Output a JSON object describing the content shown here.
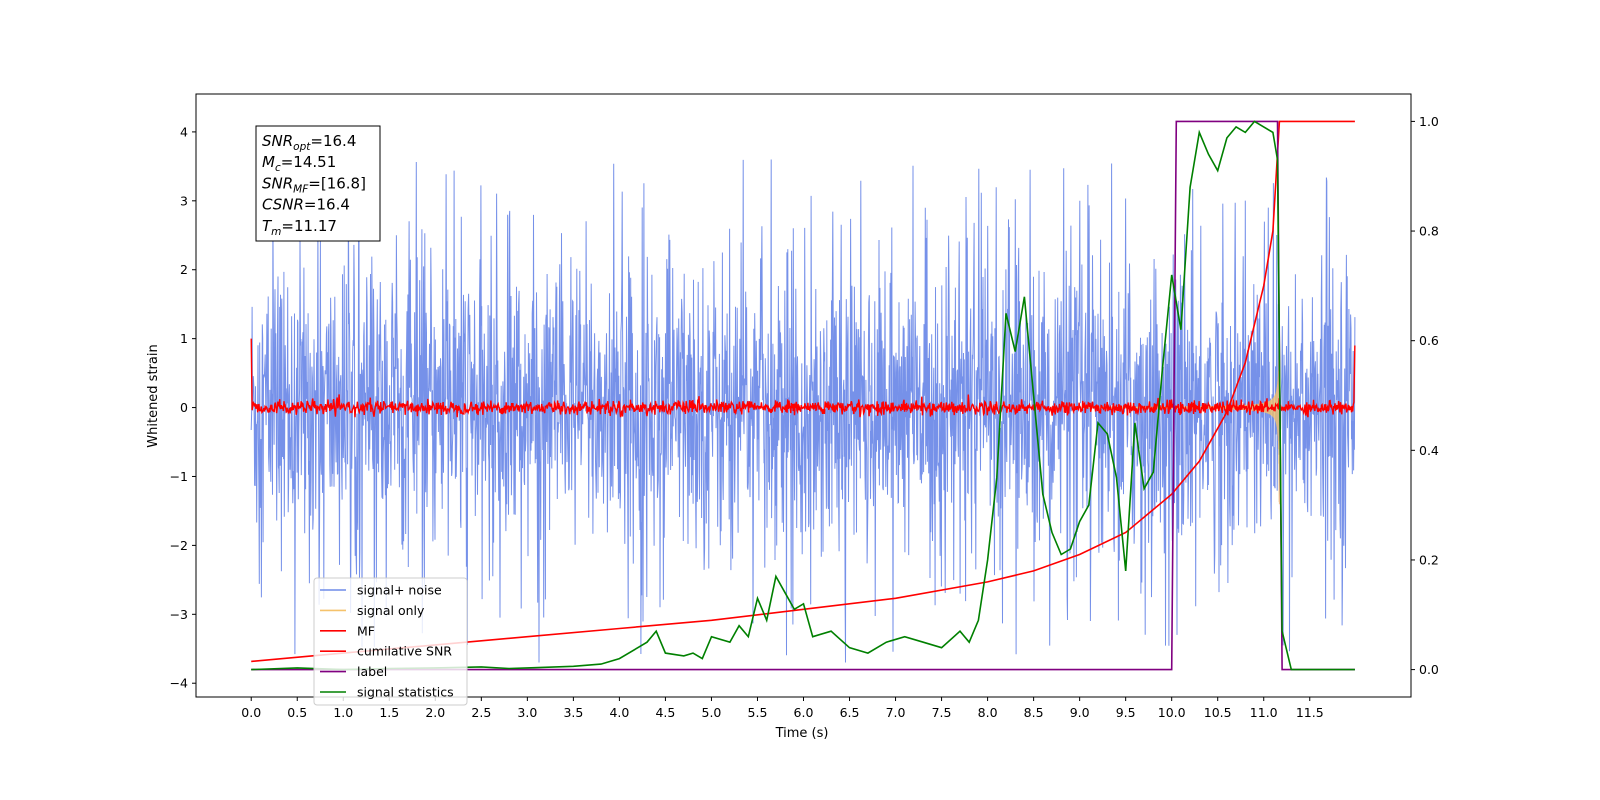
{
  "chart_data": {
    "type": "line",
    "xlabel": "Time (s)",
    "ylabel": "Whitened strain",
    "xlim": [
      -0.6,
      12.6
    ],
    "ylim": [
      -4.2,
      4.55
    ],
    "y2lim": [
      -0.05,
      1.05
    ],
    "xticks": [
      0.0,
      0.5,
      1.0,
      1.5,
      2.0,
      2.5,
      3.0,
      3.5,
      4.0,
      4.5,
      5.0,
      5.5,
      6.0,
      6.5,
      7.0,
      7.5,
      8.0,
      8.5,
      9.0,
      9.5,
      10.0,
      10.5,
      11.0,
      11.5
    ],
    "xtick_labels": [
      "0.0",
      "0.5",
      "1.0",
      "1.5",
      "2.0",
      "2.5",
      "3.0",
      "3.5",
      "4.0",
      "4.5",
      "5.0",
      "5.5",
      "6.0",
      "6.5",
      "7.0",
      "7.5",
      "8.0",
      "8.5",
      "9.0",
      "9.5",
      "10.0",
      "10.5",
      "11.0",
      "11.5"
    ],
    "yticks": [
      -4,
      -3,
      -2,
      -1,
      0,
      1,
      2,
      3,
      4
    ],
    "ytick_labels": [
      "−4",
      "−3",
      "−2",
      "−1",
      "0",
      "1",
      "2",
      "3",
      "4"
    ],
    "y2ticks": [
      0.0,
      0.2,
      0.4,
      0.6,
      0.8,
      1.0
    ],
    "y2tick_labels": [
      "0.0",
      "0.2",
      "0.4",
      "0.6",
      "0.8",
      "1.0"
    ],
    "grid": false,
    "legend_position": "bottom-left",
    "series": [
      {
        "name": "signal+ noise",
        "color": "#6f8be8",
        "axis": "left",
        "style": "noise band, amplitude ~±2.5 with spikes to ~±3.6",
        "x_range": [
          0.0,
          11.99
        ]
      },
      {
        "name": "signal only",
        "color": "#f5c26b",
        "axis": "left",
        "style": "chirp, amplitude growing to ~±2.6 at 11.17 s",
        "x_range": [
          0.0,
          11.17
        ]
      },
      {
        "name": "MF",
        "color": "#ff0000",
        "axis": "left",
        "style": "flat noise around 0, amplitude ~±0.1",
        "x_range": [
          0.0,
          11.99
        ]
      },
      {
        "name": "cumilative SNR",
        "color": "#ff0000",
        "axis": "right",
        "x": [
          0.0,
          1.0,
          2.0,
          3.0,
          4.0,
          5.0,
          6.0,
          7.0,
          8.0,
          8.5,
          9.0,
          9.5,
          10.0,
          10.3,
          10.6,
          10.8,
          11.0,
          11.1,
          11.17,
          11.2,
          11.99
        ],
        "values": [
          0.015,
          0.03,
          0.045,
          0.06,
          0.075,
          0.09,
          0.11,
          0.13,
          0.16,
          0.18,
          0.21,
          0.25,
          0.32,
          0.38,
          0.47,
          0.56,
          0.7,
          0.8,
          1.0,
          1.0,
          1.0
        ]
      },
      {
        "name": "label",
        "color": "#800080",
        "axis": "right",
        "x": [
          0.0,
          10.0,
          10.05,
          11.15,
          11.2,
          11.99
        ],
        "values": [
          0.0,
          0.0,
          1.0,
          1.0,
          0.0,
          0.0
        ]
      },
      {
        "name": "signal statistics",
        "color": "#008000",
        "axis": "right",
        "x": [
          0.0,
          0.5,
          1.0,
          1.5,
          2.0,
          2.5,
          2.8,
          3.0,
          3.5,
          3.8,
          4.0,
          4.2,
          4.3,
          4.4,
          4.5,
          4.7,
          4.8,
          4.9,
          5.0,
          5.2,
          5.3,
          5.4,
          5.5,
          5.6,
          5.7,
          5.8,
          5.9,
          6.0,
          6.1,
          6.3,
          6.5,
          6.7,
          6.9,
          7.1,
          7.3,
          7.5,
          7.7,
          7.8,
          7.9,
          8.0,
          8.1,
          8.2,
          8.3,
          8.4,
          8.5,
          8.6,
          8.7,
          8.8,
          8.9,
          9.0,
          9.1,
          9.2,
          9.3,
          9.4,
          9.5,
          9.6,
          9.7,
          9.8,
          9.9,
          10.0,
          10.1,
          10.2,
          10.3,
          10.4,
          10.5,
          10.6,
          10.7,
          10.8,
          10.9,
          11.0,
          11.1,
          11.15,
          11.2,
          11.3,
          11.99
        ],
        "values": [
          0.0,
          0.003,
          0.0,
          0.002,
          0.003,
          0.005,
          0.002,
          0.003,
          0.006,
          0.01,
          0.02,
          0.04,
          0.05,
          0.07,
          0.03,
          0.025,
          0.03,
          0.02,
          0.06,
          0.05,
          0.08,
          0.06,
          0.13,
          0.09,
          0.17,
          0.14,
          0.11,
          0.12,
          0.06,
          0.07,
          0.04,
          0.03,
          0.05,
          0.06,
          0.05,
          0.04,
          0.07,
          0.05,
          0.09,
          0.2,
          0.35,
          0.65,
          0.58,
          0.68,
          0.5,
          0.32,
          0.25,
          0.21,
          0.22,
          0.27,
          0.3,
          0.45,
          0.43,
          0.35,
          0.18,
          0.45,
          0.33,
          0.36,
          0.55,
          0.72,
          0.62,
          0.88,
          0.98,
          0.94,
          0.91,
          0.97,
          0.99,
          0.98,
          1.0,
          0.99,
          0.98,
          0.93,
          0.07,
          0.0,
          0.0
        ]
      }
    ],
    "annotation": [
      {
        "name": "SNR",
        "sub": "opt",
        "value": "=16.4"
      },
      {
        "name": "M",
        "sub": "c",
        "value": "=14.51"
      },
      {
        "name": "SNR",
        "sub": "MF",
        "value": "=[16.8]"
      },
      {
        "name": "CSNR",
        "sub": "",
        "value": "=16.4"
      },
      {
        "name": "T",
        "sub": "m",
        "value": "=11.17"
      }
    ]
  }
}
